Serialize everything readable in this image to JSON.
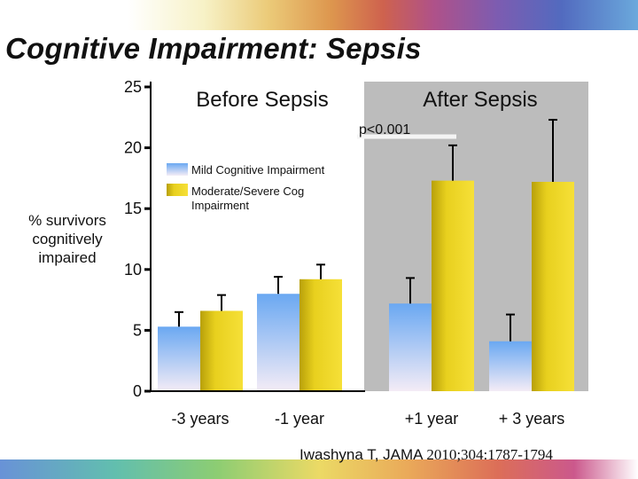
{
  "slide": {
    "title": "Cognitive Impairment:  Sepsis",
    "citation_prefix": "Iwashyna T,  JAMA ",
    "citation_ref": "2010;304:1787-1794"
  },
  "colors": {
    "mild": "#7fb5f0",
    "moderate": "#d9c020",
    "after_background": "#bcbcbc",
    "axis": "#000000"
  },
  "chart_data": {
    "type": "bar",
    "title": "",
    "ylabel": "% survivors cognitively impaired",
    "ylim": [
      0,
      25
    ],
    "yticks": [
      0,
      5,
      10,
      15,
      20,
      25
    ],
    "grid": false,
    "categories": [
      "-3 years",
      "-1 year",
      "+1 year",
      "+ 3 years"
    ],
    "series": [
      {
        "name": "Mild Cognitive Impairment",
        "values": [
          5.3,
          8.0,
          7.2,
          4.1
        ],
        "error_upper": [
          6.5,
          9.4,
          9.3,
          6.3
        ]
      },
      {
        "name": "Moderate/Severe Cog Impairment",
        "values": [
          6.6,
          9.2,
          17.3,
          17.2
        ],
        "error_upper": [
          7.9,
          10.4,
          20.2,
          22.3
        ]
      }
    ],
    "regions": [
      {
        "label": "Before Sepsis",
        "categories": [
          "-3 years",
          "-1 year"
        ]
      },
      {
        "label": "After Sepsis",
        "categories": [
          "+1 year",
          "+ 3 years"
        ]
      }
    ],
    "annotations": [
      "p<0.001"
    ],
    "legend_position": "top-left"
  }
}
